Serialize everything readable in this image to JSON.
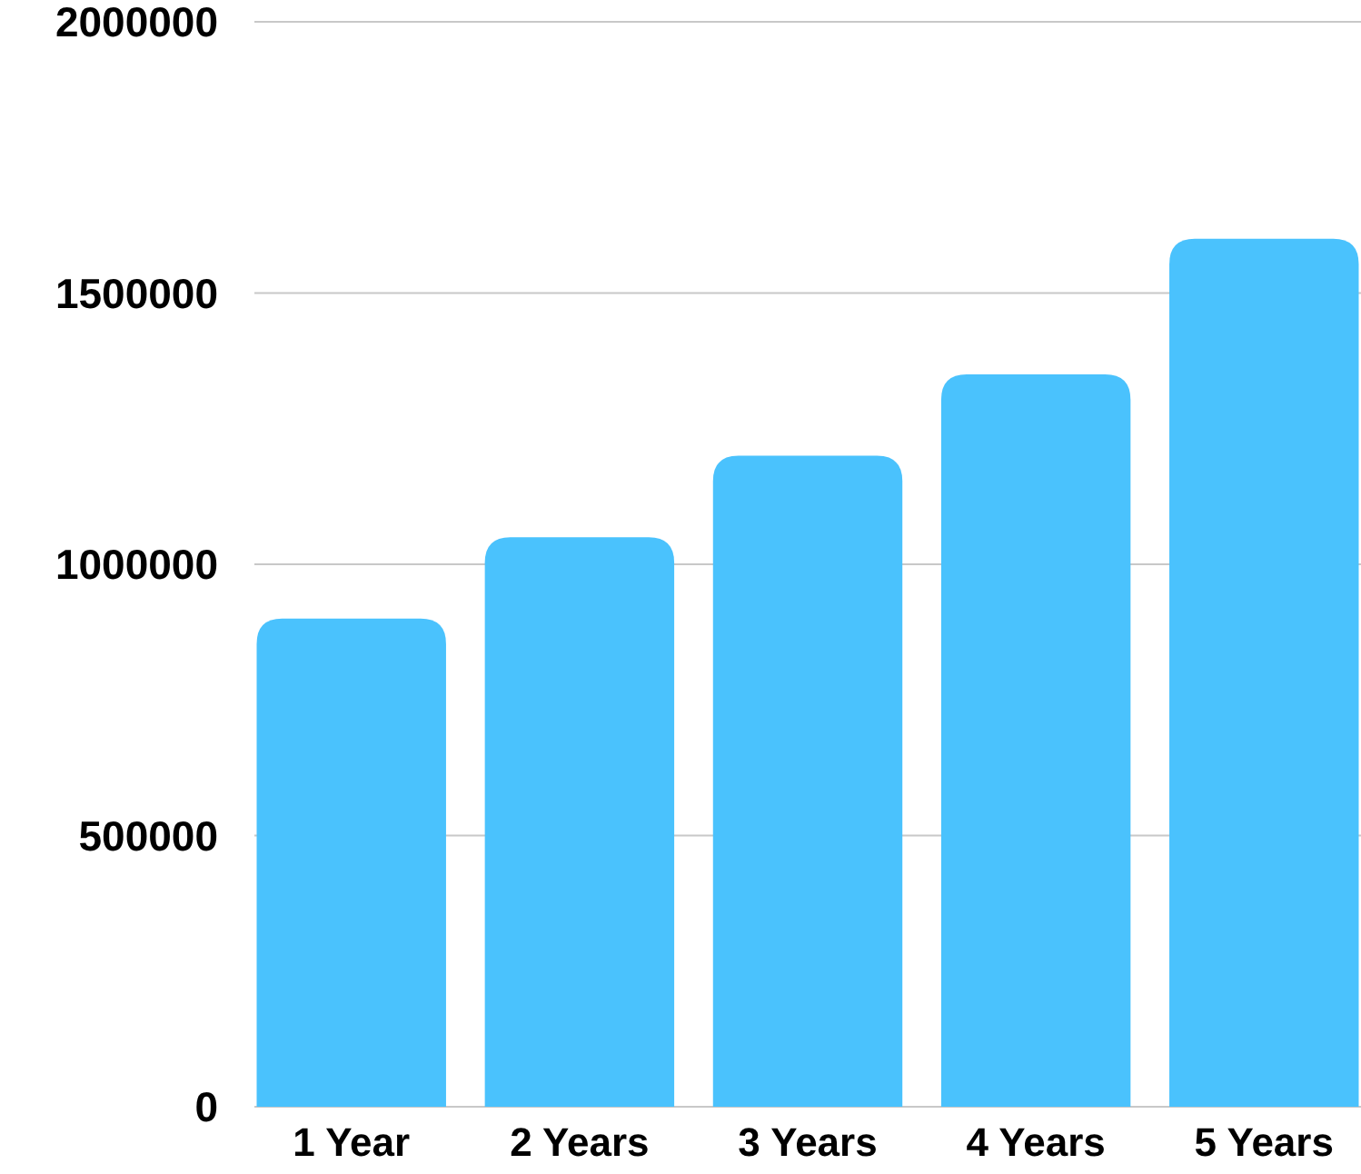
{
  "chart_data": {
    "type": "bar",
    "categories": [
      "1 Year",
      "2 Years",
      "3 Years",
      "4 Years",
      "5 Years"
    ],
    "values": [
      900000,
      1050000,
      1200000,
      1350000,
      1600000
    ],
    "color": "#4ac2fd",
    "ylim": [
      0,
      2000000
    ],
    "yticks": [
      0,
      500000,
      1000000,
      1500000,
      2000000
    ],
    "grid": "y"
  }
}
